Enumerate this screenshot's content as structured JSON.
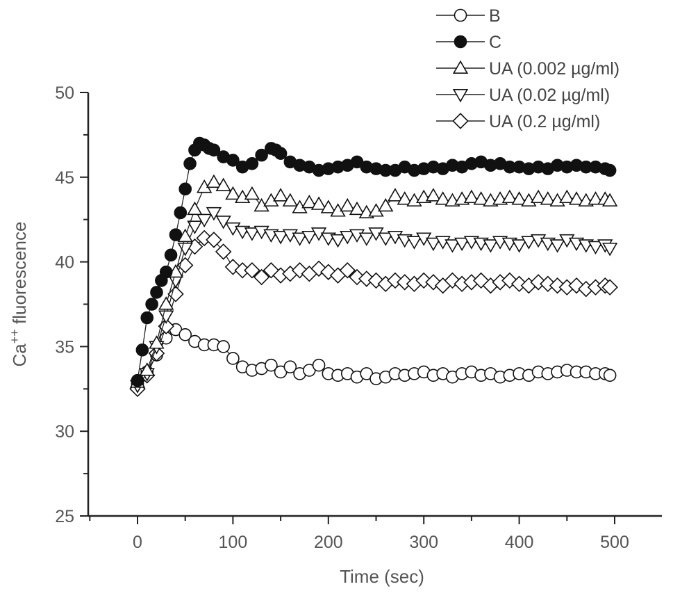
{
  "chart_data": {
    "type": "line",
    "xlabel": "Time (sec)",
    "ylabel_main": "Ca",
    "ylabel_superscript": "++",
    "ylabel_rest": " fluorescence",
    "xlim": [
      -50,
      550
    ],
    "ylim": [
      25,
      50
    ],
    "x_ticks": [
      0,
      100,
      200,
      300,
      400,
      500
    ],
    "y_ticks": [
      25,
      30,
      35,
      40,
      45,
      50
    ],
    "legend_position": "top-right",
    "series": [
      {
        "name": "B",
        "marker": "circle-open",
        "x": [
          0,
          10,
          20,
          30,
          40,
          50,
          60,
          70,
          80,
          90,
          100,
          110,
          120,
          130,
          140,
          150,
          160,
          170,
          180,
          190,
          200,
          210,
          220,
          230,
          240,
          250,
          260,
          270,
          280,
          290,
          300,
          310,
          320,
          330,
          340,
          350,
          360,
          370,
          380,
          390,
          400,
          410,
          420,
          430,
          440,
          450,
          460,
          470,
          480,
          490,
          495
        ],
        "values": [
          32.8,
          33.5,
          34.5,
          35.5,
          36.0,
          35.7,
          35.3,
          35.1,
          35.1,
          35.0,
          34.3,
          33.8,
          33.6,
          33.7,
          33.9,
          33.5,
          33.8,
          33.4,
          33.6,
          33.9,
          33.4,
          33.3,
          33.4,
          33.2,
          33.4,
          33.1,
          33.2,
          33.4,
          33.3,
          33.4,
          33.5,
          33.3,
          33.4,
          33.2,
          33.4,
          33.5,
          33.3,
          33.4,
          33.2,
          33.3,
          33.4,
          33.3,
          33.5,
          33.4,
          33.5,
          33.6,
          33.5,
          33.5,
          33.4,
          33.4,
          33.3
        ]
      },
      {
        "name": "C",
        "marker": "circle-filled",
        "x": [
          0,
          5,
          10,
          15,
          20,
          25,
          30,
          35,
          40,
          45,
          50,
          55,
          60,
          65,
          70,
          75,
          80,
          90,
          100,
          110,
          120,
          130,
          140,
          145,
          150,
          160,
          170,
          180,
          190,
          200,
          210,
          220,
          230,
          240,
          250,
          260,
          270,
          280,
          290,
          300,
          310,
          320,
          330,
          340,
          350,
          360,
          370,
          380,
          390,
          400,
          410,
          420,
          430,
          440,
          450,
          460,
          470,
          480,
          490,
          495
        ],
        "values": [
          33.0,
          34.8,
          36.7,
          37.5,
          38.2,
          38.9,
          39.4,
          40.4,
          41.6,
          42.9,
          44.3,
          45.8,
          46.6,
          47.0,
          46.9,
          46.7,
          46.6,
          46.2,
          46.0,
          45.6,
          45.8,
          46.3,
          46.7,
          46.6,
          46.4,
          45.9,
          45.7,
          45.6,
          45.4,
          45.5,
          45.6,
          45.7,
          45.9,
          45.6,
          45.5,
          45.4,
          45.4,
          45.6,
          45.4,
          45.5,
          45.6,
          45.5,
          45.7,
          45.6,
          45.8,
          45.9,
          45.7,
          45.8,
          45.6,
          45.6,
          45.5,
          45.6,
          45.5,
          45.7,
          45.6,
          45.7,
          45.6,
          45.6,
          45.5,
          45.4
        ]
      },
      {
        "name": "UA (0.002 µg/ml)",
        "marker": "triangle-up-open",
        "x": [
          0,
          10,
          20,
          30,
          40,
          50,
          60,
          70,
          80,
          90,
          100,
          110,
          120,
          130,
          140,
          150,
          160,
          170,
          180,
          190,
          200,
          210,
          220,
          230,
          240,
          250,
          260,
          270,
          280,
          290,
          300,
          310,
          320,
          330,
          340,
          350,
          360,
          370,
          380,
          390,
          400,
          410,
          420,
          430,
          440,
          450,
          460,
          470,
          480,
          490,
          495
        ],
        "values": [
          32.9,
          33.6,
          35.2,
          37.5,
          39.4,
          41.5,
          43.1,
          44.4,
          44.7,
          44.5,
          44.0,
          43.8,
          44.0,
          43.3,
          43.6,
          43.9,
          43.6,
          43.2,
          43.5,
          43.4,
          43.2,
          43.0,
          43.3,
          43.1,
          42.9,
          43.0,
          43.3,
          43.9,
          43.7,
          43.6,
          43.8,
          43.9,
          43.7,
          43.6,
          43.7,
          43.8,
          43.7,
          43.6,
          43.7,
          43.8,
          43.7,
          43.6,
          43.8,
          43.7,
          43.6,
          43.8,
          43.7,
          43.6,
          43.7,
          43.7,
          43.6
        ]
      },
      {
        "name": "UA (0.02 µg/ml)",
        "marker": "triangle-down-open",
        "x": [
          0,
          10,
          20,
          30,
          40,
          50,
          60,
          70,
          80,
          90,
          100,
          110,
          120,
          130,
          140,
          150,
          160,
          170,
          180,
          190,
          200,
          210,
          220,
          230,
          240,
          250,
          260,
          270,
          280,
          290,
          300,
          310,
          320,
          330,
          340,
          350,
          360,
          370,
          380,
          390,
          400,
          410,
          420,
          430,
          440,
          450,
          460,
          470,
          480,
          490,
          495
        ],
        "values": [
          32.7,
          33.4,
          35.0,
          36.8,
          38.9,
          40.8,
          42.1,
          42.5,
          42.9,
          42.4,
          42.0,
          41.8,
          41.7,
          41.8,
          41.6,
          41.5,
          41.6,
          41.4,
          41.5,
          41.7,
          41.4,
          41.3,
          41.5,
          41.6,
          41.4,
          41.7,
          41.4,
          41.5,
          41.3,
          41.2,
          41.4,
          41.1,
          41.2,
          41.0,
          41.1,
          41.2,
          41.1,
          41.0,
          41.2,
          41.1,
          41.0,
          41.2,
          41.3,
          41.1,
          41.0,
          41.3,
          41.1,
          41.0,
          40.9,
          41.0,
          40.8
        ]
      },
      {
        "name": "UA (0.2 µg/ml)",
        "marker": "diamond-open",
        "x": [
          0,
          10,
          20,
          30,
          40,
          50,
          60,
          70,
          80,
          90,
          100,
          110,
          120,
          130,
          140,
          150,
          160,
          170,
          180,
          190,
          200,
          210,
          220,
          230,
          240,
          250,
          260,
          270,
          280,
          290,
          300,
          310,
          320,
          330,
          340,
          350,
          360,
          370,
          380,
          390,
          400,
          410,
          420,
          430,
          440,
          450,
          460,
          470,
          480,
          490,
          495
        ],
        "values": [
          32.5,
          33.3,
          34.6,
          36.2,
          38.1,
          39.8,
          40.9,
          41.4,
          41.3,
          40.6,
          39.7,
          39.5,
          39.5,
          39.1,
          39.5,
          39.2,
          39.3,
          39.5,
          39.3,
          39.6,
          39.4,
          39.2,
          39.5,
          39.1,
          39.0,
          38.9,
          38.7,
          38.9,
          38.8,
          38.7,
          38.9,
          38.8,
          38.6,
          38.9,
          38.7,
          38.8,
          38.9,
          38.6,
          38.8,
          38.9,
          38.7,
          38.6,
          38.8,
          38.7,
          38.6,
          38.5,
          38.6,
          38.4,
          38.5,
          38.6,
          38.5
        ]
      }
    ]
  }
}
